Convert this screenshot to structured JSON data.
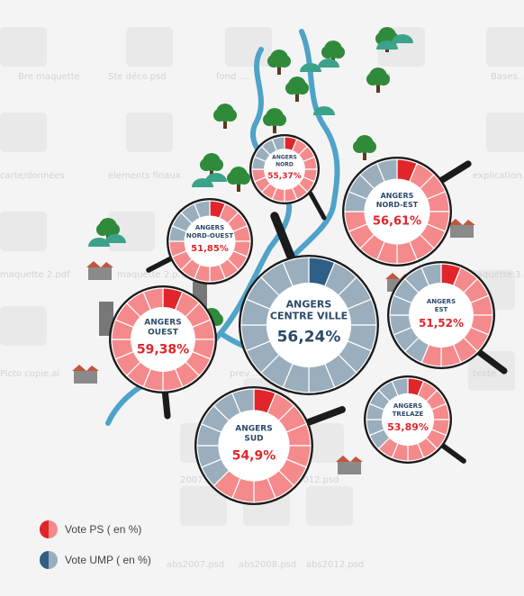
{
  "colors": {
    "ps_dark": "#e0262b",
    "ps_light": "#f58a8c",
    "ump_dark": "#2f5f86",
    "ump_light": "#9aaebd",
    "river": "#4fa3c8",
    "label_blue": "#2c4a69",
    "label_red": "#e0262b",
    "handle": "#1b1b1b",
    "tree": "#2f8a3a",
    "hill": "#3aa38a"
  },
  "background_files": [
    "Bre maquette",
    "Ste déco.psd",
    "fond ...",
    "... .psd",
    "Bases... desssins",
    "carte/données",
    "elements finaux",
    "explication...",
    "maquette 2.pdf",
    "maquette 2.p...",
    "maquette 3...",
    "Picto copie.ai",
    "prev...",
    "texte ...",
    "2007...",
    "2012.psd",
    "abs2007.psd",
    "abs2008.psd",
    "abs2012.psd"
  ],
  "districts": [
    {
      "id": "nord",
      "name_lines": [
        "ANGERS",
        "NORD"
      ],
      "value": "55,37%",
      "winner": "ps",
      "ps_share": 0.75
    },
    {
      "id": "nord-est",
      "name_lines": [
        "ANGERS",
        "NORD-EST"
      ],
      "value": "56,61%",
      "winner": "ps",
      "ps_share": 0.72
    },
    {
      "id": "nord-ouest",
      "name_lines": [
        "ANGERS",
        "NORD-OUEST"
      ],
      "value": "51,85%",
      "winner": "ps",
      "ps_share": 0.75
    },
    {
      "id": "centre-ville",
      "name_lines": [
        "ANGERS",
        "CENTRE VILLE"
      ],
      "value": "56,24%",
      "winner": "ump",
      "ps_share": 0.0
    },
    {
      "id": "est",
      "name_lines": [
        "ANGERS",
        "EST"
      ],
      "value": "51,52%",
      "winner": "ps",
      "ps_share": 0.55
    },
    {
      "id": "ouest",
      "name_lines": [
        "ANGERS",
        "OUEST"
      ],
      "value": "59,38%",
      "winner": "ps",
      "ps_share": 1.0
    },
    {
      "id": "trelaze",
      "name_lines": [
        "ANGERS",
        "TRELAZE"
      ],
      "value": "53,89%",
      "winner": "ps",
      "ps_share": 0.6
    },
    {
      "id": "sud",
      "name_lines": [
        "ANGERS",
        "SUD"
      ],
      "value": "54,9%",
      "winner": "ps",
      "ps_share": 0.6
    }
  ],
  "legend": {
    "ps_label": "Vote PS ( en %)",
    "ump_label": "Vote UMP ( en %)"
  }
}
